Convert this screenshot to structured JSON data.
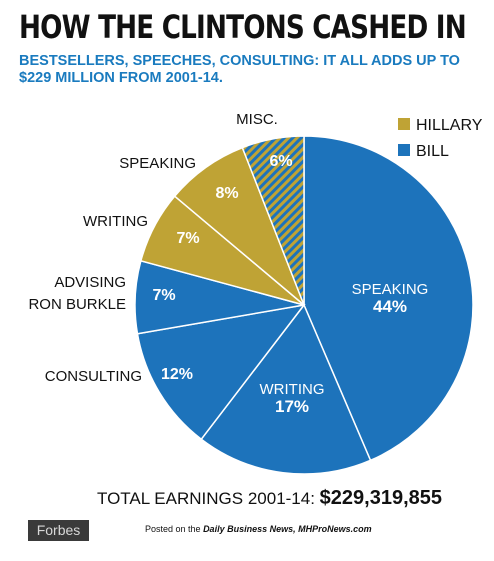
{
  "header": {
    "title": "HOW THE CLINTONS CASHED IN",
    "subtitle_line1": "BESTSELLERS, SPEECHES, CONSULTING: IT ALL ADDS UP TO",
    "subtitle_line2": "$229 MILLION FROM 2001-14."
  },
  "chart_data": {
    "type": "pie",
    "title": "HOW THE CLINTONS CASHED IN",
    "legend": {
      "placement": "top-right",
      "entries": [
        {
          "name": "HILLARY",
          "color": "#bfa335"
        },
        {
          "name": "BILL",
          "color": "#1d73bb"
        }
      ]
    },
    "slices": [
      {
        "label": "SPEAKING",
        "value": 44,
        "value_label": "44%",
        "owner": "BILL",
        "color": "#1d73bb"
      },
      {
        "label": "WRITING",
        "value": 17,
        "value_label": "17%",
        "owner": "BILL",
        "color": "#1d73bb"
      },
      {
        "label": "CONSULTING",
        "value": 12,
        "value_label": "12%",
        "owner": "BILL",
        "color": "#1d73bb"
      },
      {
        "label": "ADVISING RON BURKLE",
        "value": 7,
        "value_label": "7%",
        "owner": "BILL",
        "color": "#1d73bb"
      },
      {
        "label": "WRITING",
        "value": 7,
        "value_label": "7%",
        "owner": "HILLARY",
        "color": "#bfa335"
      },
      {
        "label": "SPEAKING",
        "value": 8,
        "value_label": "8%",
        "owner": "HILLARY",
        "color": "#bfa335"
      },
      {
        "label": "MISC.",
        "value": 6,
        "value_label": "6%",
        "owner": "MISC",
        "color": "striped"
      }
    ]
  },
  "footer": {
    "total_label": "TOTAL EARNINGS 2001-14:",
    "total_value": "$229,319,855",
    "source": "Forbes",
    "credit_prefix": "Posted on the",
    "credit_emphasis": "Daily Business News, MHProNews.com"
  },
  "colors": {
    "bill": "#1d73bb",
    "hillary": "#bfa335",
    "subtitle": "#1a7bbf"
  }
}
